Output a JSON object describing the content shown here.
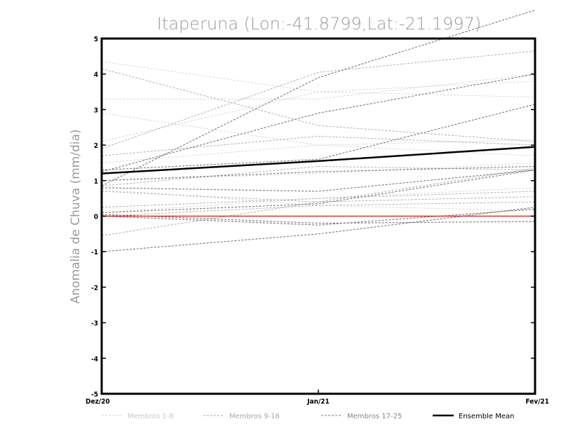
{
  "chart_data": {
    "type": "line",
    "title": "Itaperuna (Lon:-41.8799,Lat:-21.1997)",
    "ylabel": "Anomalia de Chuva (mm/dia)",
    "xlabel": "",
    "categories": [
      "Dez/20",
      "Jan/21",
      "Fev/21"
    ],
    "ylim": [
      -5,
      5
    ],
    "yticks": [
      "5",
      "4",
      "3",
      "2",
      "1",
      "0",
      "-1",
      "-2",
      "-3",
      "-4",
      "-5"
    ],
    "zero_line_color": "#e03030",
    "legend": [
      {
        "label": "Membros 1-8",
        "color": "#d0d0d0"
      },
      {
        "label": "Membros 9-16",
        "color": "#a8a8a8"
      },
      {
        "label": "Membros 17-25",
        "color": "#777777"
      },
      {
        "label": "Ensemble Mean",
        "color": "#000000"
      }
    ],
    "series": [
      {
        "name": "Membro 1",
        "group": 0,
        "values": [
          4.35,
          3.5,
          3.35
        ]
      },
      {
        "name": "Membro 2",
        "group": 0,
        "values": [
          2.1,
          3.5,
          3.8
        ]
      },
      {
        "name": "Membro 3",
        "group": 0,
        "values": [
          2.9,
          2.0,
          2.15
        ]
      },
      {
        "name": "Membro 4",
        "group": 0,
        "values": [
          1.5,
          2.0,
          1.7
        ]
      },
      {
        "name": "Membro 5",
        "group": 0,
        "values": [
          1.0,
          1.2,
          1.5
        ]
      },
      {
        "name": "Membro 6",
        "group": 0,
        "values": [
          0.75,
          0.3,
          0.15
        ]
      },
      {
        "name": "Membro 7",
        "group": 0,
        "values": [
          0.1,
          0.5,
          0.8
        ]
      },
      {
        "name": "Membro 8",
        "group": 0,
        "values": [
          3.3,
          3.3,
          4.0
        ]
      },
      {
        "name": "Membro 9",
        "group": 1,
        "values": [
          4.15,
          2.55,
          2.1
        ]
      },
      {
        "name": "Membro 10",
        "group": 1,
        "values": [
          1.9,
          4.05,
          4.65
        ]
      },
      {
        "name": "Membro 11",
        "group": 1,
        "values": [
          1.7,
          2.25,
          2.0
        ]
      },
      {
        "name": "Membro 12",
        "group": 1,
        "values": [
          0.85,
          1.4,
          1.3
        ]
      },
      {
        "name": "Membro 13",
        "group": 1,
        "values": [
          0.7,
          0.4,
          1.35
        ]
      },
      {
        "name": "Membro 14",
        "group": 1,
        "values": [
          0.25,
          0.5,
          0.7
        ]
      },
      {
        "name": "Membro 15",
        "group": 1,
        "values": [
          -0.55,
          0.4,
          0.55
        ]
      },
      {
        "name": "Membro 16",
        "group": 1,
        "values": [
          0.0,
          0.3,
          0.4
        ]
      },
      {
        "name": "Membro 17",
        "group": 2,
        "values": [
          0.85,
          3.9,
          5.8
        ]
      },
      {
        "name": "Membro 18",
        "group": 2,
        "values": [
          1.25,
          2.9,
          4.0
        ]
      },
      {
        "name": "Membro 19",
        "group": 2,
        "values": [
          1.3,
          1.6,
          3.15
        ]
      },
      {
        "name": "Membro 20",
        "group": 2,
        "values": [
          1.0,
          1.25,
          1.4
        ]
      },
      {
        "name": "Membro 21",
        "group": 2,
        "values": [
          0.8,
          0.7,
          1.3
        ]
      },
      {
        "name": "Membro 22",
        "group": 2,
        "values": [
          0.1,
          0.35,
          1.3
        ]
      },
      {
        "name": "Membro 23",
        "group": 2,
        "values": [
          0.0,
          -0.25,
          0.2
        ]
      },
      {
        "name": "Membro 24",
        "group": 2,
        "values": [
          -1.0,
          -0.5,
          0.25
        ]
      },
      {
        "name": "Membro 25",
        "group": 2,
        "values": [
          0.05,
          -0.2,
          -0.15
        ]
      }
    ],
    "ensemble_mean": {
      "name": "Ensemble Mean",
      "values": [
        1.2,
        1.55,
        1.95
      ]
    }
  }
}
